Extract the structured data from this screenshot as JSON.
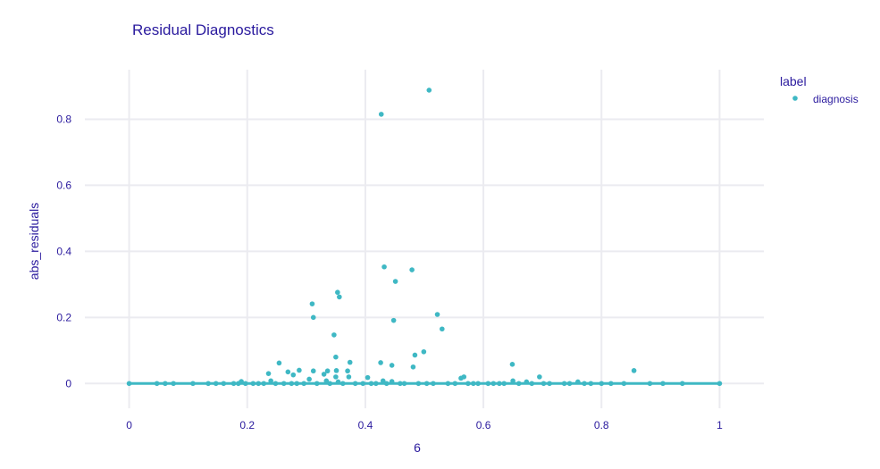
{
  "colors": {
    "text": "#2a1a9e",
    "grid": "#ebebf0",
    "marker": "#3fb8c4",
    "line": "#3fb8c4",
    "background": "#ffffff"
  },
  "chart_data": {
    "type": "scatter",
    "title": "Residual Diagnostics",
    "xlabel": "6",
    "ylabel": "abs_residuals",
    "xlim": [
      -0.075,
      1.075
    ],
    "ylim": [
      -0.075,
      0.95
    ],
    "xticks": [
      0,
      0.2,
      0.4,
      0.6,
      0.8,
      1
    ],
    "xtick_labels": [
      "0",
      "0.2",
      "0.4",
      "0.6",
      "0.8",
      "1"
    ],
    "yticks": [
      0,
      0.2,
      0.4,
      0.6,
      0.8
    ],
    "ytick_labels": [
      "0",
      "0.2",
      "0.4",
      "0.6",
      "0.8"
    ],
    "grid": true,
    "legend": {
      "title": "label",
      "position": "top-right",
      "entries": [
        "diagnosis"
      ]
    },
    "series": [
      {
        "name": "diagnosis",
        "mode": "markers",
        "points": [
          [
            0.508,
            0.888
          ],
          [
            0.427,
            0.815
          ],
          [
            0.432,
            0.353
          ],
          [
            0.479,
            0.344
          ],
          [
            0.451,
            0.309
          ],
          [
            0.353,
            0.276
          ],
          [
            0.356,
            0.262
          ],
          [
            0.31,
            0.241
          ],
          [
            0.312,
            0.2
          ],
          [
            0.522,
            0.209
          ],
          [
            0.448,
            0.191
          ],
          [
            0.53,
            0.165
          ],
          [
            0.347,
            0.147
          ],
          [
            0.499,
            0.096
          ],
          [
            0.484,
            0.086
          ],
          [
            0.35,
            0.08
          ],
          [
            0.374,
            0.064
          ],
          [
            0.426,
            0.063
          ],
          [
            0.254,
            0.062
          ],
          [
            0.649,
            0.058
          ],
          [
            0.445,
            0.055
          ],
          [
            0.481,
            0.05
          ],
          [
            0.855,
            0.039
          ],
          [
            0.288,
            0.04
          ],
          [
            0.312,
            0.038
          ],
          [
            0.336,
            0.038
          ],
          [
            0.351,
            0.039
          ],
          [
            0.37,
            0.038
          ],
          [
            0.269,
            0.035
          ],
          [
            0.236,
            0.03
          ],
          [
            0.33,
            0.028
          ],
          [
            0.278,
            0.026
          ],
          [
            0.305,
            0.013
          ],
          [
            0.372,
            0.02
          ],
          [
            0.35,
            0.02
          ],
          [
            0.567,
            0.02
          ],
          [
            0.562,
            0.016
          ],
          [
            0.695,
            0.02
          ],
          [
            0.404,
            0.018
          ],
          [
            0.24,
            0.008
          ],
          [
            0.43,
            0.008
          ],
          [
            0.65,
            0.008
          ],
          [
            0.334,
            0.008
          ],
          [
            0.19,
            0.006
          ],
          [
            0.673,
            0.005
          ],
          [
            0.76,
            0.005
          ],
          [
            0.445,
            0.006
          ],
          [
            0.354,
            0.005
          ],
          [
            0.0,
            0.0
          ],
          [
            0.047,
            0.0
          ],
          [
            0.061,
            0.0
          ],
          [
            0.075,
            0.0
          ],
          [
            0.108,
            0.0
          ],
          [
            0.134,
            0.0
          ],
          [
            0.147,
            0.0
          ],
          [
            0.16,
            0.0
          ],
          [
            0.177,
            0.0
          ],
          [
            0.185,
            0.0
          ],
          [
            0.197,
            0.0
          ],
          [
            0.21,
            0.0
          ],
          [
            0.219,
            0.0
          ],
          [
            0.228,
            0.0
          ],
          [
            0.248,
            0.0
          ],
          [
            0.262,
            0.0
          ],
          [
            0.275,
            0.0
          ],
          [
            0.284,
            0.0
          ],
          [
            0.296,
            0.0
          ],
          [
            0.318,
            0.0
          ],
          [
            0.34,
            0.0
          ],
          [
            0.362,
            0.0
          ],
          [
            0.383,
            0.0
          ],
          [
            0.396,
            0.0
          ],
          [
            0.41,
            0.0
          ],
          [
            0.418,
            0.0
          ],
          [
            0.436,
            0.0
          ],
          [
            0.459,
            0.0
          ],
          [
            0.466,
            0.0
          ],
          [
            0.49,
            0.0
          ],
          [
            0.504,
            0.0
          ],
          [
            0.515,
            0.0
          ],
          [
            0.54,
            0.0
          ],
          [
            0.552,
            0.0
          ],
          [
            0.574,
            0.0
          ],
          [
            0.583,
            0.0
          ],
          [
            0.591,
            0.0
          ],
          [
            0.608,
            0.0
          ],
          [
            0.617,
            0.0
          ],
          [
            0.627,
            0.0
          ],
          [
            0.635,
            0.0
          ],
          [
            0.66,
            0.0
          ],
          [
            0.682,
            0.0
          ],
          [
            0.702,
            0.0
          ],
          [
            0.712,
            0.0
          ],
          [
            0.737,
            0.0
          ],
          [
            0.746,
            0.0
          ],
          [
            0.771,
            0.0
          ],
          [
            0.782,
            0.0
          ],
          [
            0.8,
            0.0
          ],
          [
            0.816,
            0.0
          ],
          [
            0.838,
            0.0
          ],
          [
            0.882,
            0.0
          ],
          [
            0.904,
            0.0
          ],
          [
            0.937,
            0.0
          ],
          [
            1.0,
            0.0
          ]
        ]
      },
      {
        "name": "",
        "mode": "line",
        "points": [
          [
            0.0,
            0.0
          ],
          [
            1.0,
            0.0
          ]
        ]
      }
    ]
  }
}
